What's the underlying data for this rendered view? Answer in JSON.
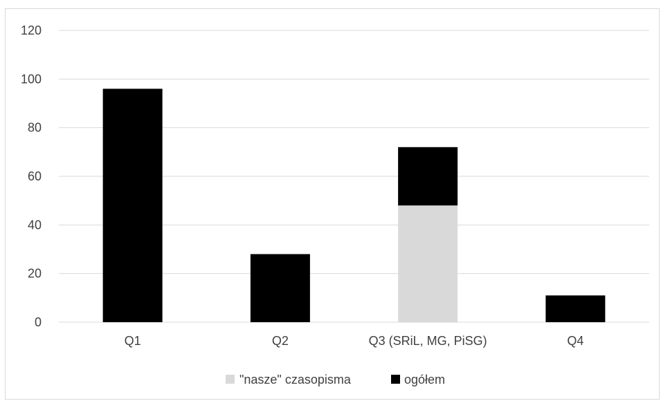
{
  "chart_data": {
    "type": "bar",
    "stacked": true,
    "title": "",
    "xlabel": "",
    "ylabel": "",
    "ylim": [
      0,
      120
    ],
    "yticks": [
      0,
      20,
      40,
      60,
      80,
      100,
      120
    ],
    "categories": [
      "Q1",
      "Q2",
      "Q3 (SRiL, MG, PiSG)",
      "Q4"
    ],
    "series": [
      {
        "name": "\"nasze\" czasopisma",
        "color": "#d9d9d9",
        "values": [
          0,
          0,
          48,
          0
        ]
      },
      {
        "name": "ogółem",
        "color": "#000000",
        "values": [
          96,
          28,
          24,
          11
        ]
      }
    ],
    "grid": true,
    "legend_position": "bottom"
  }
}
